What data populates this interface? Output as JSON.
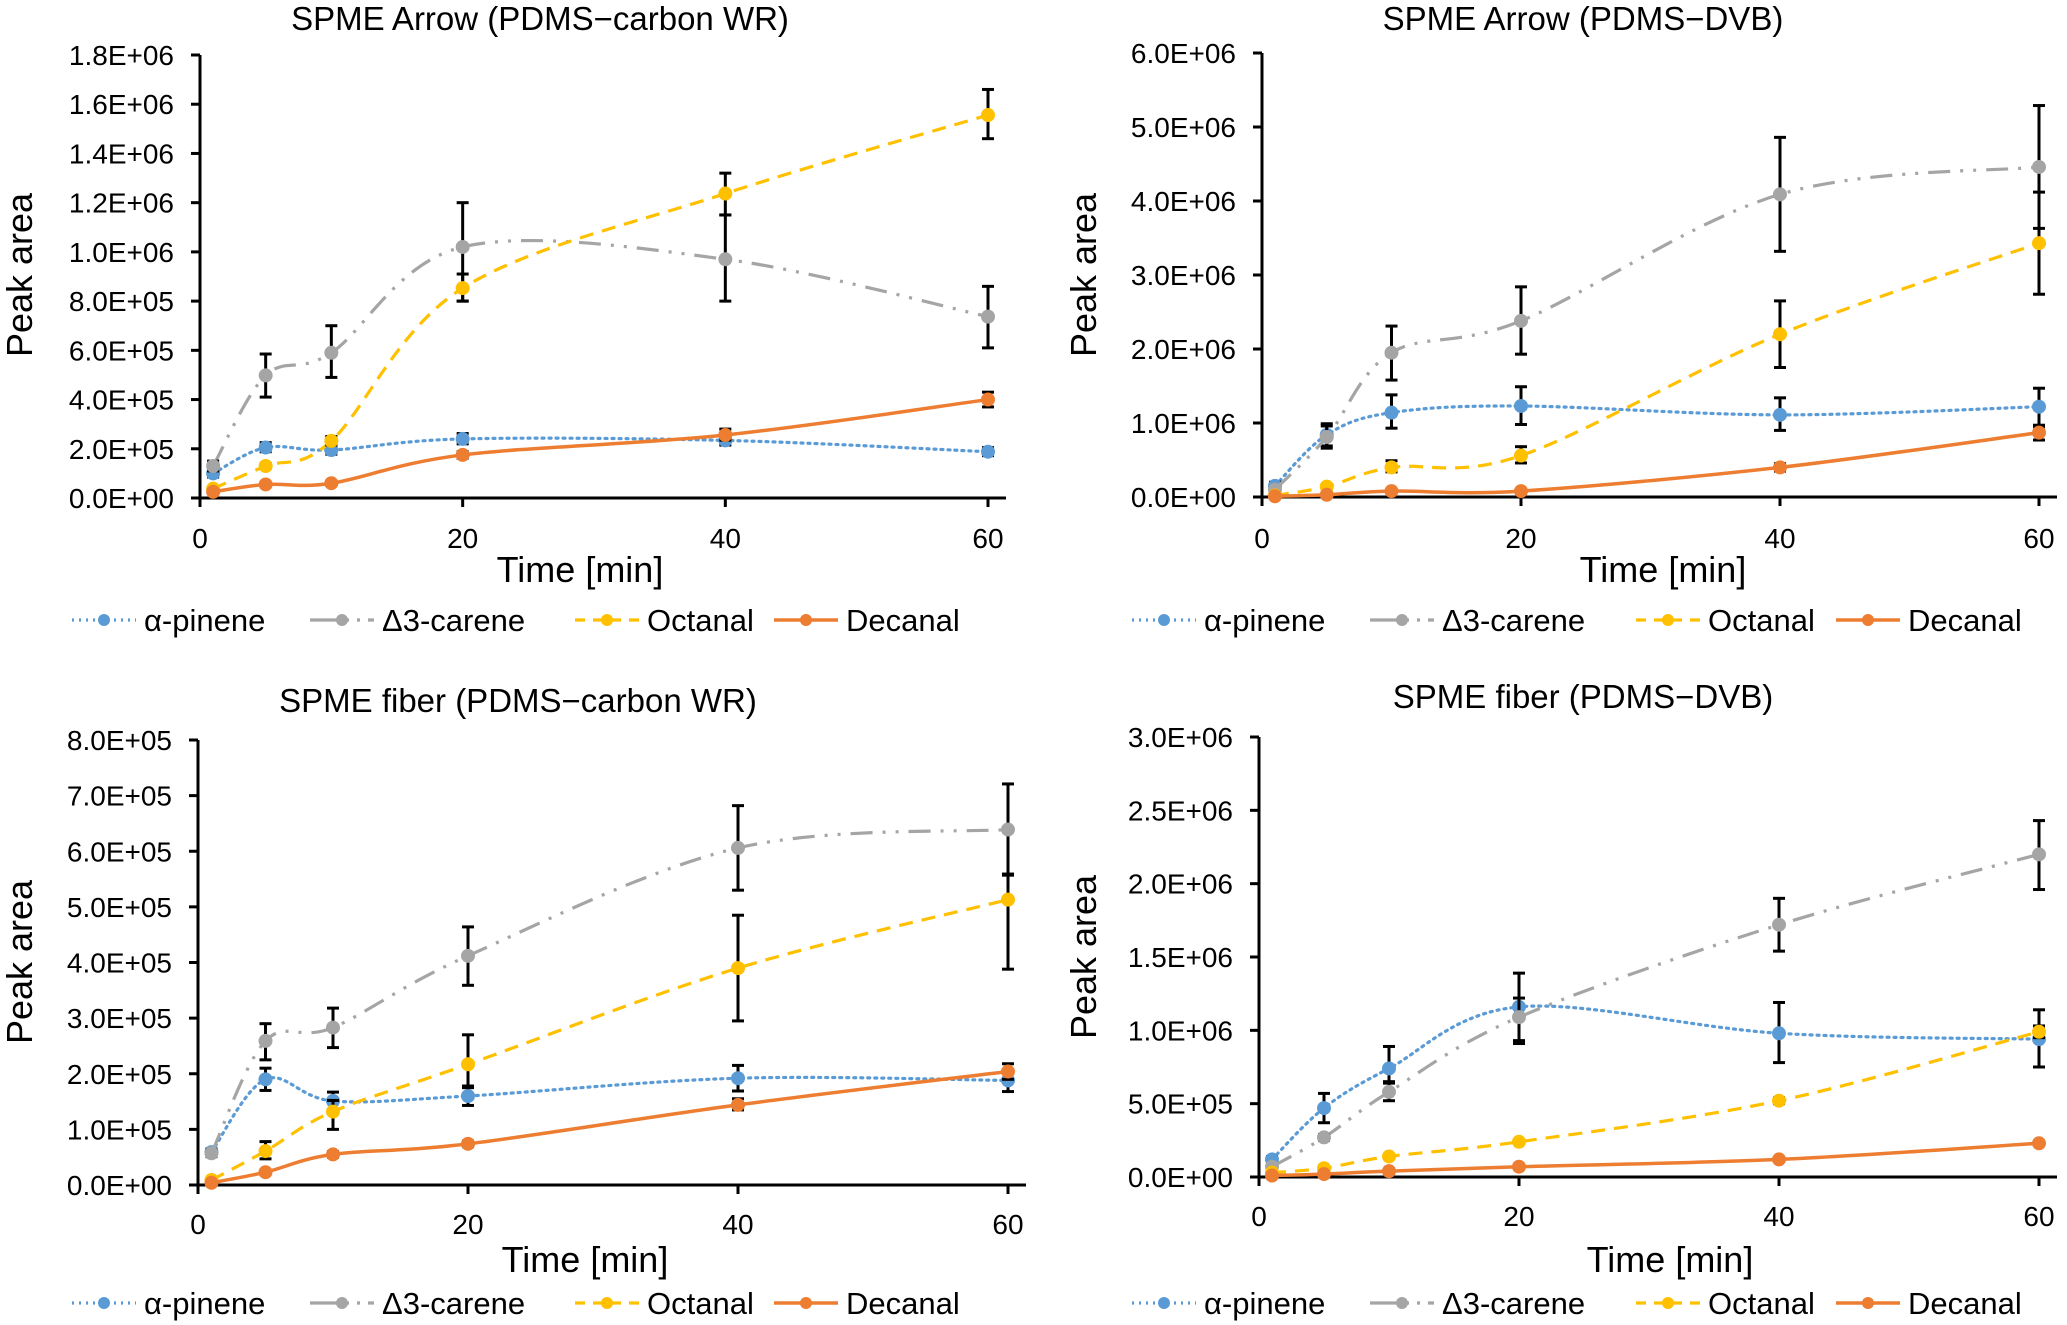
{
  "figure": {
    "series_styles": [
      {
        "name": "α-pinene",
        "color": "#5B9BD5",
        "dash": "dotted"
      },
      {
        "name": "Δ3-carene",
        "color": "#A5A5A5",
        "dash": "long-dash-dot-dot"
      },
      {
        "name": "Octanal",
        "color": "#FFC000",
        "dash": "dashed"
      },
      {
        "name": "Decanal",
        "color": "#ED7D31",
        "dash": "solid"
      }
    ],
    "error_bar_color": "#000000"
  },
  "chart_data": [
    {
      "type": "line",
      "title": "SPME Arrow (PDMS−carbon WR)",
      "xlabel": "Time [min]",
      "ylabel": "Peak area",
      "x": [
        1,
        5,
        10,
        20,
        40,
        60
      ],
      "xlim": [
        0,
        60
      ],
      "xticks": [
        "0",
        "20",
        "40",
        "60"
      ],
      "ylim": [
        0,
        1800000
      ],
      "yticks": [
        "0.0E+00",
        "2.0E+05",
        "4.0E+05",
        "6.0E+05",
        "8.0E+05",
        "1.0E+06",
        "1.2E+06",
        "1.4E+06",
        "1.6E+06",
        "1.8E+06"
      ],
      "grid": false,
      "legend": "bottom",
      "series": [
        {
          "name": "α-pinene",
          "values": [
            100000,
            205000,
            195000,
            240000,
            234000,
            188000
          ],
          "err_high": [
            130000,
            225000,
            215000,
            262000,
            255000,
            205000
          ],
          "err_low": [
            85000,
            188000,
            178000,
            220000,
            215000,
            172000
          ]
        },
        {
          "name": "Δ3-carene",
          "values": [
            130000,
            498000,
            590000,
            1020000,
            970000,
            737000
          ],
          "err_high": [
            150000,
            585000,
            700000,
            1200000,
            1150000,
            860000
          ],
          "err_low": [
            110000,
            410000,
            490000,
            800000,
            800000,
            610000
          ]
        },
        {
          "name": "Octanal",
          "values": [
            38000,
            130000,
            232000,
            853000,
            1237000,
            1556000
          ],
          "err_high": [
            45000,
            140000,
            250000,
            910000,
            1320000,
            1660000
          ],
          "err_low": [
            30000,
            120000,
            215000,
            800000,
            1150000,
            1460000
          ]
        },
        {
          "name": "Decanal",
          "values": [
            25000,
            55000,
            60000,
            175000,
            256000,
            400000
          ],
          "err_high": [
            30000,
            62000,
            68000,
            188000,
            280000,
            430000
          ],
          "err_low": [
            20000,
            48000,
            52000,
            162000,
            235000,
            370000
          ]
        }
      ]
    },
    {
      "type": "line",
      "title": "SPME Arrow (PDMS−DVB)",
      "xlabel": "Time [min]",
      "ylabel": "Peak area",
      "x": [
        1,
        5,
        10,
        20,
        40,
        60
      ],
      "xlim": [
        0,
        60
      ],
      "xticks": [
        "0",
        "20",
        "40",
        "60"
      ],
      "ylim": [
        0,
        6000000
      ],
      "yticks": [
        "0.0E+00",
        "1.0E+06",
        "2.0E+06",
        "3.0E+06",
        "4.0E+06",
        "5.0E+06",
        "6.0E+06"
      ],
      "grid": false,
      "legend": "bottom",
      "series": [
        {
          "name": "α-pinene",
          "values": [
            150000,
            840000,
            1140000,
            1230000,
            1110000,
            1220000
          ],
          "err_high": [
            200000,
            990000,
            1380000,
            1490000,
            1340000,
            1470000
          ],
          "err_low": [
            100000,
            690000,
            930000,
            980000,
            900000,
            950000
          ]
        },
        {
          "name": "Δ3-carene",
          "values": [
            100000,
            810000,
            1950000,
            2380000,
            4090000,
            4460000
          ],
          "err_high": [
            130000,
            960000,
            2310000,
            2840000,
            4860000,
            5290000
          ],
          "err_low": [
            70000,
            660000,
            1580000,
            1930000,
            3320000,
            3630000
          ]
        },
        {
          "name": "Octanal",
          "values": [
            20000,
            140000,
            400000,
            560000,
            2200000,
            3430000
          ],
          "err_high": [
            30000,
            170000,
            490000,
            680000,
            2650000,
            4120000
          ],
          "err_low": [
            10000,
            110000,
            340000,
            460000,
            1750000,
            2740000
          ]
        },
        {
          "name": "Decanal",
          "values": [
            10000,
            30000,
            80000,
            80000,
            400000,
            870000
          ],
          "err_high": [
            15000,
            40000,
            100000,
            100000,
            450000,
            970000
          ],
          "err_low": [
            5000,
            20000,
            60000,
            60000,
            350000,
            770000
          ]
        }
      ]
    },
    {
      "type": "line",
      "title": "SPME fiber (PDMS−carbon WR)",
      "xlabel": "Time [min]",
      "ylabel": "Peak area",
      "x": [
        1,
        5,
        10,
        20,
        40,
        60
      ],
      "xlim": [
        0,
        60
      ],
      "xticks": [
        "0",
        "20",
        "40",
        "60"
      ],
      "ylim": [
        0,
        800000
      ],
      "yticks": [
        "0.0E+00",
        "1.0E+05",
        "2.0E+05",
        "3.0E+05",
        "4.0E+05",
        "5.0E+05",
        "6.0E+05",
        "7.0E+05",
        "8.0E+05"
      ],
      "grid": false,
      "legend": "bottom",
      "series": [
        {
          "name": "α-pinene",
          "values": [
            59000,
            190000,
            151000,
            160000,
            192000,
            188000
          ],
          "err_high": [
            65000,
            210000,
            167000,
            178000,
            215000,
            205000
          ],
          "err_low": [
            53000,
            170000,
            135000,
            143000,
            169000,
            168000
          ]
        },
        {
          "name": "Δ3-carene",
          "values": [
            57000,
            259000,
            283000,
            412000,
            606000,
            639000
          ],
          "err_high": [
            63000,
            290000,
            318000,
            464000,
            682000,
            721000
          ],
          "err_low": [
            51000,
            225000,
            247000,
            359000,
            530000,
            559000
          ]
        },
        {
          "name": "Octanal",
          "values": [
            9000,
            61000,
            132000,
            217000,
            390000,
            513000
          ],
          "err_high": [
            12000,
            78000,
            152000,
            270000,
            485000,
            557000
          ],
          "err_low": [
            6000,
            47000,
            100000,
            175000,
            295000,
            388000
          ]
        },
        {
          "name": "Decanal",
          "values": [
            4000,
            23000,
            55000,
            74000,
            144000,
            204000
          ],
          "err_high": [
            6000,
            27000,
            60000,
            79000,
            155000,
            218000
          ],
          "err_low": [
            2000,
            19000,
            50000,
            69000,
            135000,
            190000
          ]
        }
      ]
    },
    {
      "type": "line",
      "title": "SPME fiber  (PDMS−DVB)",
      "xlabel": "Time [min]",
      "ylabel": "Peak area",
      "x": [
        1,
        5,
        10,
        20,
        40,
        60
      ],
      "xlim": [
        0,
        60
      ],
      "xticks": [
        "0",
        "20",
        "40",
        "60"
      ],
      "ylim": [
        0,
        3000000
      ],
      "yticks": [
        "0.0E+00",
        "5.0E+05",
        "1.0E+06",
        "1.5E+06",
        "2.0E+06",
        "2.5E+06",
        "3.0E+06"
      ],
      "grid": false,
      "legend": "bottom",
      "series": [
        {
          "name": "α-pinene",
          "values": [
            120000,
            470000,
            740000,
            1160000,
            980000,
            940000
          ],
          "err_high": [
            140000,
            570000,
            890000,
            1390000,
            1190000,
            1140000
          ],
          "err_low": [
            100000,
            370000,
            640000,
            930000,
            780000,
            750000
          ]
        },
        {
          "name": "Δ3-carene",
          "values": [
            70000,
            270000,
            580000,
            1090000,
            1720000,
            2200000
          ],
          "err_high": [
            80000,
            290000,
            650000,
            1220000,
            1900000,
            2430000
          ],
          "err_low": [
            60000,
            250000,
            520000,
            910000,
            1540000,
            1960000
          ]
        },
        {
          "name": "Octanal",
          "values": [
            30000,
            60000,
            140000,
            240000,
            520000,
            990000
          ],
          "err_high": [
            35000,
            70000,
            150000,
            255000,
            540000,
            1030000
          ],
          "err_low": [
            25000,
            50000,
            130000,
            225000,
            500000,
            950000
          ]
        },
        {
          "name": "Decanal",
          "values": [
            10000,
            20000,
            40000,
            70000,
            120000,
            230000
          ],
          "err_high": [
            12000,
            24000,
            45000,
            76000,
            130000,
            240000
          ],
          "err_low": [
            8000,
            16000,
            35000,
            64000,
            110000,
            220000
          ]
        }
      ]
    }
  ]
}
